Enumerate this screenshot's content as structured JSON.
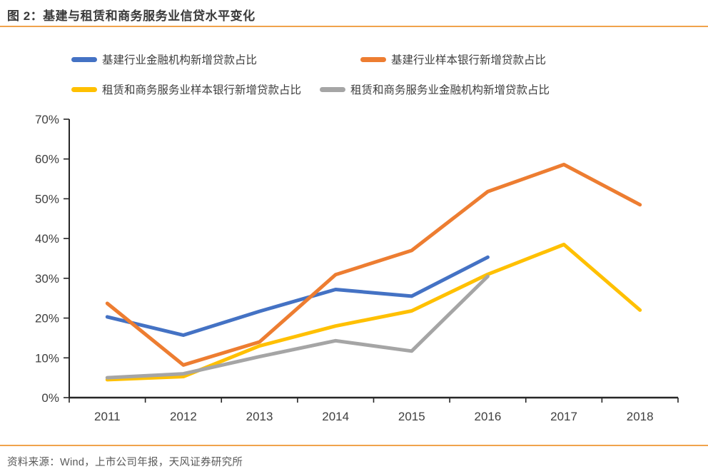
{
  "header": {
    "title": "图 2：基建与租赁和商务服务业信贷水平变化"
  },
  "footer": {
    "source": "资料来源：Wind，上市公司年报，天风证券研究所"
  },
  "colors": {
    "accent_rule": "#f0a34c",
    "axis": "#262626",
    "axis_label": "#404040",
    "title_text": "#3a3a3a",
    "source_text": "#595959",
    "series_blue": "#4472C4",
    "series_orange": "#ED7D31",
    "series_yellow": "#FFC000",
    "series_gray": "#A5A5A5"
  },
  "chart_data": {
    "type": "line",
    "title": "基建与租赁和商务服务业信贷水平变化",
    "categories": [
      "2011",
      "2012",
      "2013",
      "2014",
      "2015",
      "2016",
      "2017",
      "2018"
    ],
    "series": [
      {
        "name": "基建行业金融机构新增贷款占比",
        "color": "#4472C4",
        "values": [
          20.3,
          15.7,
          21.7,
          27.2,
          25.5,
          35.3,
          null,
          null
        ]
      },
      {
        "name": "基建行业样本银行新增贷款占比",
        "color": "#ED7D31",
        "values": [
          23.7,
          8.2,
          14.0,
          30.9,
          37.0,
          51.8,
          58.6,
          48.5
        ]
      },
      {
        "name": "租赁和商务服务业样本银行新增贷款占比",
        "color": "#FFC000",
        "values": [
          4.5,
          5.3,
          13.0,
          18.0,
          21.8,
          31.0,
          38.5,
          22.0
        ]
      },
      {
        "name": "租赁和商务服务业金融机构新增贷款占比",
        "color": "#A5A5A5",
        "values": [
          5.0,
          6.0,
          10.3,
          14.3,
          11.7,
          30.5,
          null,
          null
        ]
      }
    ],
    "xlabel": "",
    "ylabel": "",
    "ylim": [
      0,
      70
    ],
    "ytick_step": 10,
    "ytick_labels": [
      "0%",
      "10%",
      "20%",
      "30%",
      "40%",
      "50%",
      "60%",
      "70%"
    ],
    "grid": false,
    "legend_position": "top"
  }
}
